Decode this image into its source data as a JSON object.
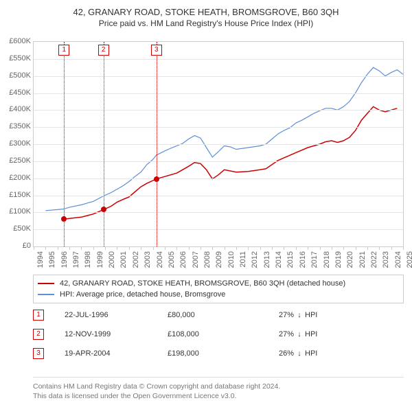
{
  "title": "42, GRANARY ROAD, STOKE HEATH, BROMSGROVE, B60 3QH",
  "subtitle": "Price paid vs. HM Land Registry's House Price Index (HPI)",
  "chart": {
    "x_min_year": 1994,
    "x_max_year": 2025,
    "y_min": 0,
    "y_max": 600000,
    "y_step": 50000,
    "y_prefix": "£",
    "y_suffix": "K",
    "grid_color": "#e5e5e5",
    "axis_color": "#cccccc",
    "background_color": "#ffffff",
    "series": {
      "property": {
        "color": "#cc0000",
        "width": 1.5,
        "points": [
          [
            1996.55,
            80000
          ],
          [
            1997,
            82000
          ],
          [
            1998,
            86000
          ],
          [
            1999,
            95000
          ],
          [
            1999.86,
            108000
          ],
          [
            2000.5,
            118000
          ],
          [
            2001,
            130000
          ],
          [
            2001.5,
            138000
          ],
          [
            2002,
            145000
          ],
          [
            2002.5,
            160000
          ],
          [
            2003,
            175000
          ],
          [
            2003.5,
            185000
          ],
          [
            2004.3,
            198000
          ],
          [
            2005,
            205000
          ],
          [
            2006,
            215000
          ],
          [
            2006.5,
            225000
          ],
          [
            2007,
            235000
          ],
          [
            2007.5,
            246000
          ],
          [
            2008,
            243000
          ],
          [
            2008.5,
            225000
          ],
          [
            2009,
            198000
          ],
          [
            2009.5,
            210000
          ],
          [
            2010,
            225000
          ],
          [
            2011,
            218000
          ],
          [
            2012,
            220000
          ],
          [
            2013,
            225000
          ],
          [
            2013.5,
            228000
          ],
          [
            2014,
            240000
          ],
          [
            2014.5,
            252000
          ],
          [
            2015,
            260000
          ],
          [
            2016,
            275000
          ],
          [
            2017,
            290000
          ],
          [
            2018,
            300000
          ],
          [
            2018.5,
            307000
          ],
          [
            2019,
            310000
          ],
          [
            2019.5,
            305000
          ],
          [
            2020,
            310000
          ],
          [
            2020.5,
            320000
          ],
          [
            2021,
            340000
          ],
          [
            2021.5,
            370000
          ],
          [
            2022,
            390000
          ],
          [
            2022.5,
            410000
          ],
          [
            2023,
            400000
          ],
          [
            2023.5,
            395000
          ],
          [
            2024,
            400000
          ],
          [
            2024.5,
            405000
          ]
        ]
      },
      "hpi": {
        "color": "#5b8fd6",
        "width": 1.2,
        "points": [
          [
            1995,
            105000
          ],
          [
            1996,
            108000
          ],
          [
            1996.55,
            110000
          ],
          [
            1997,
            115000
          ],
          [
            1998,
            122000
          ],
          [
            1999,
            132000
          ],
          [
            1999.86,
            148000
          ],
          [
            2000.5,
            158000
          ],
          [
            2001,
            168000
          ],
          [
            2001.5,
            178000
          ],
          [
            2002,
            190000
          ],
          [
            2002.5,
            205000
          ],
          [
            2003,
            218000
          ],
          [
            2003.5,
            240000
          ],
          [
            2004,
            255000
          ],
          [
            2004.3,
            268000
          ],
          [
            2005,
            280000
          ],
          [
            2005.5,
            288000
          ],
          [
            2006,
            295000
          ],
          [
            2006.5,
            302000
          ],
          [
            2007,
            315000
          ],
          [
            2007.5,
            325000
          ],
          [
            2008,
            318000
          ],
          [
            2008.5,
            290000
          ],
          [
            2009,
            262000
          ],
          [
            2009.5,
            278000
          ],
          [
            2010,
            295000
          ],
          [
            2010.5,
            292000
          ],
          [
            2011,
            285000
          ],
          [
            2012,
            290000
          ],
          [
            2013,
            295000
          ],
          [
            2013.5,
            300000
          ],
          [
            2014,
            315000
          ],
          [
            2014.5,
            330000
          ],
          [
            2015,
            340000
          ],
          [
            2015.5,
            348000
          ],
          [
            2016,
            362000
          ],
          [
            2016.5,
            370000
          ],
          [
            2017,
            380000
          ],
          [
            2017.5,
            390000
          ],
          [
            2018,
            398000
          ],
          [
            2018.5,
            405000
          ],
          [
            2019,
            405000
          ],
          [
            2019.5,
            400000
          ],
          [
            2020,
            410000
          ],
          [
            2020.5,
            425000
          ],
          [
            2021,
            450000
          ],
          [
            2021.5,
            480000
          ],
          [
            2022,
            505000
          ],
          [
            2022.5,
            525000
          ],
          [
            2023,
            515000
          ],
          [
            2023.5,
            500000
          ],
          [
            2024,
            510000
          ],
          [
            2024.5,
            518000
          ],
          [
            2025,
            505000
          ]
        ]
      }
    },
    "event_markers": [
      {
        "idx": "1",
        "year": 1996.55,
        "value": 80000
      },
      {
        "idx": "2",
        "year": 1999.86,
        "value": 108000
      },
      {
        "idx": "3",
        "year": 2004.3,
        "value": 198000
      }
    ]
  },
  "legend": {
    "items": [
      {
        "color": "#cc0000",
        "label": "42, GRANARY ROAD, STOKE HEATH, BROMSGROVE, B60 3QH (detached house)"
      },
      {
        "color": "#5b8fd6",
        "label": "HPI: Average price, detached house, Bromsgrove"
      }
    ]
  },
  "events": [
    {
      "idx": "1",
      "date": "22-JUL-1996",
      "price": "£80,000",
      "pct": "27%",
      "arrow": "↓",
      "hpi_label": "HPI"
    },
    {
      "idx": "2",
      "date": "12-NOV-1999",
      "price": "£108,000",
      "pct": "27%",
      "arrow": "↓",
      "hpi_label": "HPI"
    },
    {
      "idx": "3",
      "date": "19-APR-2004",
      "price": "£198,000",
      "pct": "26%",
      "arrow": "↓",
      "hpi_label": "HPI"
    }
  ],
  "footer": {
    "line1": "Contains HM Land Registry data © Crown copyright and database right 2024.",
    "line2": "This data is licensed under the Open Government Licence v3.0."
  }
}
